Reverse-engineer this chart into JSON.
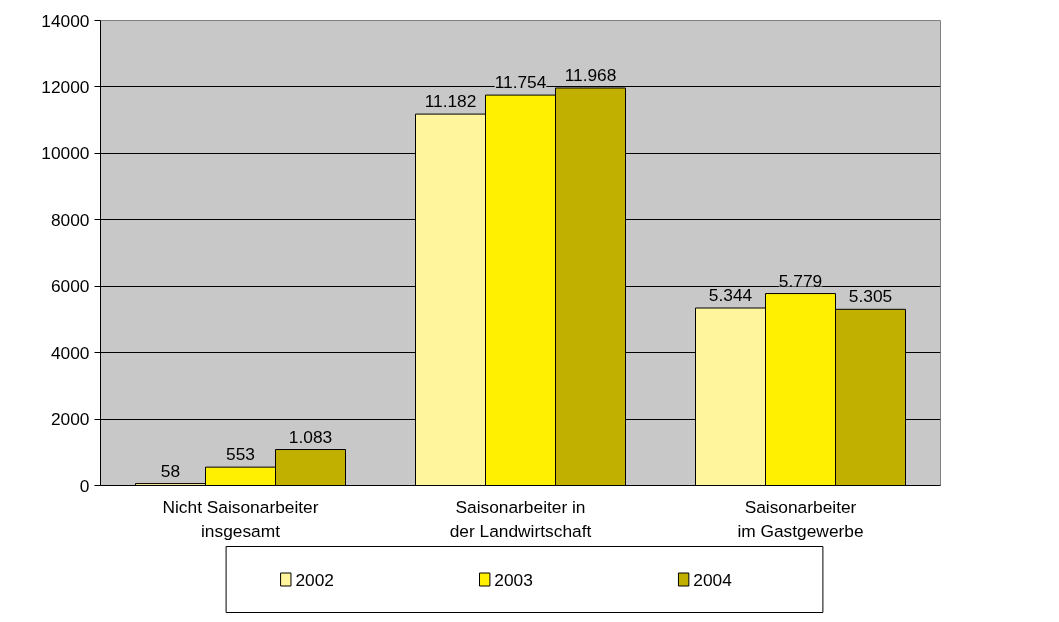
{
  "chart_data": {
    "type": "bar",
    "categories": [
      "Nicht Saisonarbeiter\ninsgesamt",
      "Saisonarbeiter in\nder Landwirtschaft",
      "Saisonarbeiter\nim Gastgewerbe"
    ],
    "series": [
      {
        "name": "2002",
        "color": "#fff59c",
        "values": [
          58,
          11182,
          5344
        ],
        "value_labels": [
          "58",
          "11.182",
          "5.344"
        ]
      },
      {
        "name": "2003",
        "color": "#ffef00",
        "values": [
          553,
          11754,
          5779
        ],
        "value_labels": [
          "553",
          "11.754",
          "5.779"
        ]
      },
      {
        "name": "2004",
        "color": "#c2b000",
        "values": [
          1083,
          11968,
          5305
        ],
        "value_labels": [
          "1.083",
          "11.968",
          "5.305"
        ]
      }
    ],
    "ylim": [
      0,
      14000
    ],
    "yticks": [
      0,
      2000,
      4000,
      6000,
      8000,
      10000,
      12000,
      14000
    ],
    "grid": "y",
    "legend": "bottom"
  }
}
